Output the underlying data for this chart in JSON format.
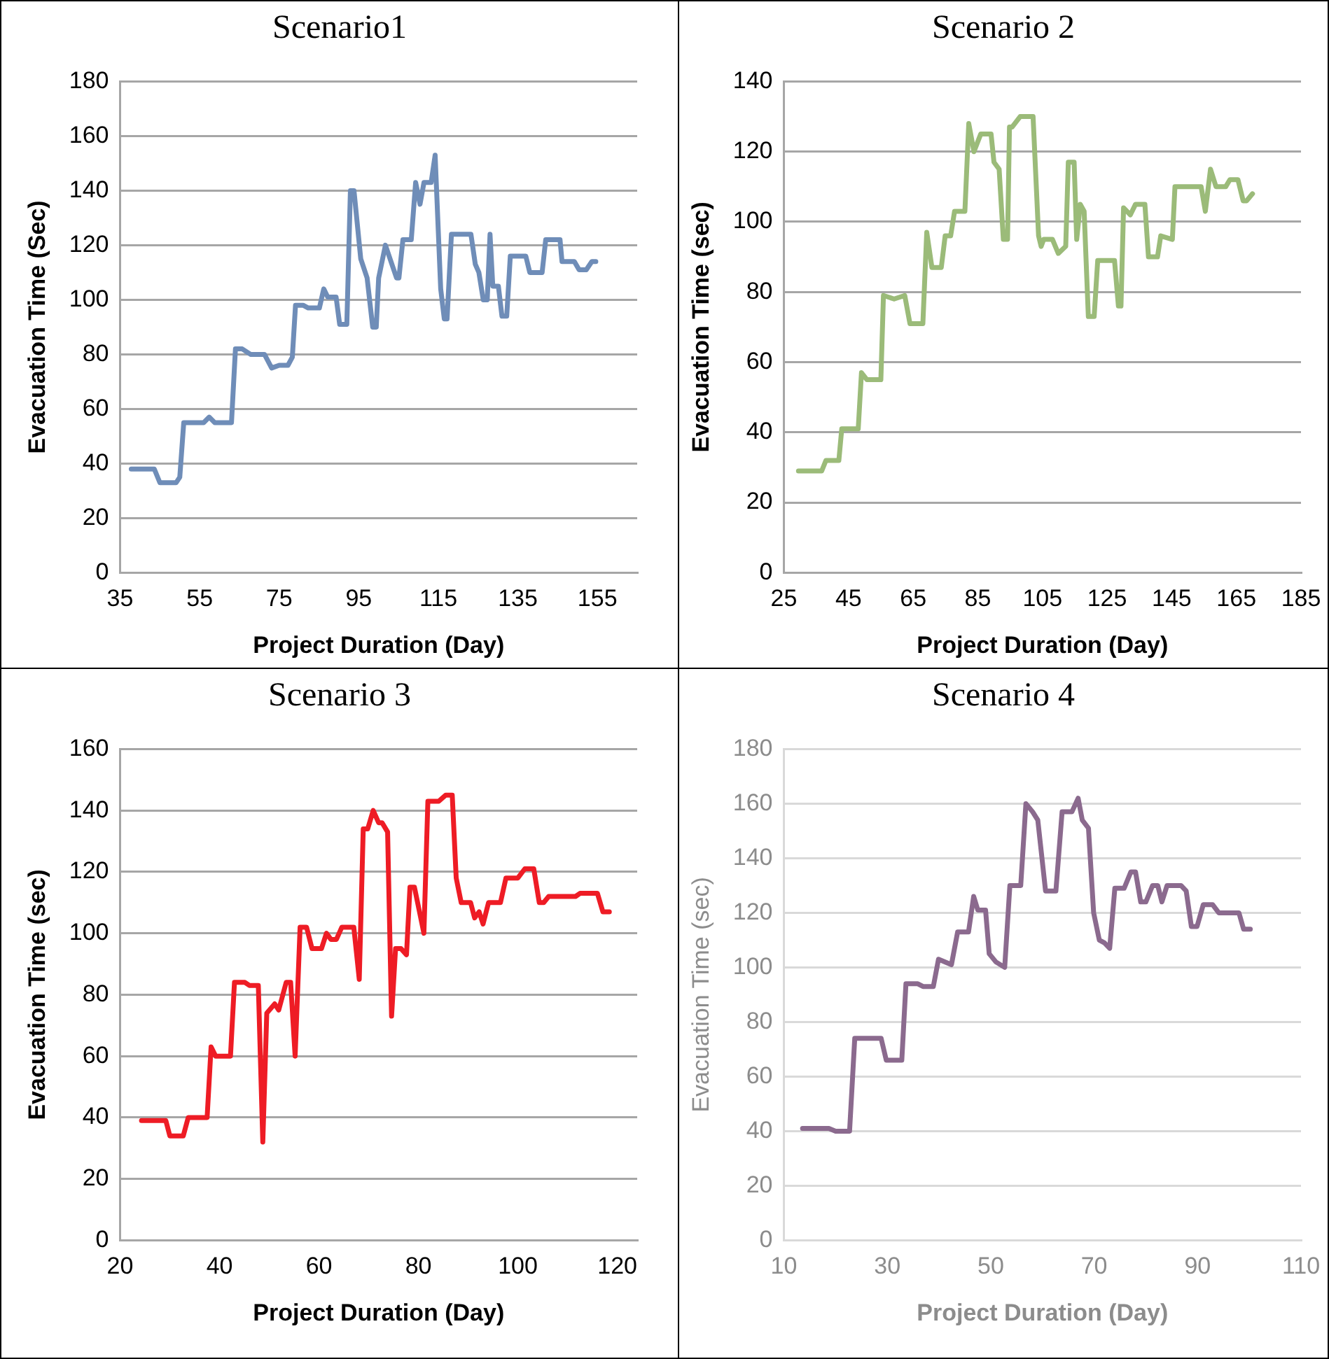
{
  "chart_data": [
    {
      "type": "line",
      "title": "Scenario1",
      "xlabel": "Project Duration (Day)",
      "ylabel": "Evacuation Time (Sec)",
      "xlim": [
        35,
        165
      ],
      "xticks": [
        35,
        55,
        75,
        95,
        115,
        135,
        155
      ],
      "ylim": [
        0,
        180
      ],
      "yticks": [
        0,
        20,
        40,
        60,
        80,
        100,
        120,
        140,
        160,
        180
      ],
      "grid": "y",
      "series": [
        {
          "color": "#6f8db8",
          "x": [
            37.8,
            43.6,
            45,
            49.1,
            50,
            51,
            56,
            57.4,
            58.8,
            63,
            64,
            65.7,
            67.8,
            71.3,
            73.1,
            75,
            77.2,
            78.3,
            79.1,
            81,
            82.3,
            85.1,
            86.2,
            87.2,
            89.3,
            90.2,
            92,
            92.9,
            93.8,
            95.5,
            97.1,
            98.5,
            99.4,
            100,
            101.7,
            104.5,
            105.1,
            106.1,
            108.2,
            109.3,
            110.4,
            111.4,
            113.2,
            114.2,
            115.6,
            116.5,
            117.2,
            118.3,
            123.2,
            124.3,
            125.2,
            126.3,
            127.3,
            128,
            128.7,
            130.1,
            131,
            132.2,
            133.1,
            137,
            138,
            141.1,
            142,
            145.6,
            146.1,
            149.2,
            150.4,
            152.2,
            153.6,
            154.6
          ],
          "values": [
            38,
            38,
            33,
            33,
            35,
            55,
            55,
            57,
            55,
            55,
            82,
            82,
            80,
            80,
            75,
            76,
            76,
            79,
            98,
            98,
            97,
            97,
            104,
            101,
            101,
            91,
            91,
            140,
            140,
            115,
            108,
            90,
            90,
            108,
            120,
            108,
            108,
            122,
            122,
            143,
            135,
            143,
            143,
            153,
            104,
            93,
            93,
            124,
            124,
            113,
            110,
            100,
            100,
            124,
            105,
            105,
            94,
            94,
            116,
            116,
            110,
            110,
            122,
            122,
            114,
            114,
            111,
            111,
            114,
            114
          ]
        }
      ]
    },
    {
      "type": "line",
      "title": "Scenario 2",
      "xlabel": "Project Duration (Day)",
      "ylabel": "Evacuation Time (sec)",
      "xlim": [
        25,
        185
      ],
      "xticks": [
        25,
        45,
        65,
        85,
        105,
        125,
        145,
        165,
        185
      ],
      "ylim": [
        0,
        140
      ],
      "yticks": [
        0,
        20,
        40,
        60,
        80,
        100,
        120,
        140
      ],
      "grid": "y",
      "series": [
        {
          "color": "#9bbb79",
          "x": [
            29.5,
            36.7,
            38,
            42,
            42.9,
            48,
            49,
            50.7,
            55,
            55.8,
            59.1,
            62.4,
            64,
            68,
            69.2,
            70.8,
            73.7,
            74.9,
            76.6,
            77.8,
            81,
            82.2,
            83.8,
            85.9,
            89.1,
            90,
            91.6,
            92.9,
            94.2,
            94.8,
            95.6,
            98.1,
            102.1,
            103.8,
            104.6,
            105.4,
            108.1,
            109.9,
            112.2,
            113,
            114.8,
            115.6,
            116.7,
            117.9,
            119.2,
            121,
            122.1,
            127.3,
            128.5,
            129.3,
            130.1,
            132.2,
            133.8,
            136.7,
            137.8,
            140.6,
            141.6,
            145.2,
            146,
            154.1,
            155.4,
            157,
            158.7,
            161.7,
            163,
            165.5,
            167.1,
            168.2,
            170
          ],
          "values": [
            29,
            29,
            32,
            32,
            41,
            41,
            57,
            55,
            55,
            79,
            78,
            79,
            71,
            71,
            97,
            87,
            87,
            96,
            96,
            103,
            103,
            128,
            120,
            125,
            125,
            117,
            115,
            95,
            95,
            127,
            127,
            130,
            130,
            96,
            93,
            95,
            95,
            91,
            93,
            117,
            117,
            95,
            105,
            103,
            73,
            73,
            89,
            89,
            76,
            76,
            104,
            102,
            105,
            105,
            90,
            90,
            96,
            95,
            110,
            110,
            103,
            115,
            110,
            110,
            112,
            112,
            106,
            106,
            108
          ]
        }
      ]
    },
    {
      "type": "line",
      "title": "Scenario 3",
      "xlabel": "Project Duration (Day)",
      "ylabel": "Evacuation Time (sec)",
      "xlim": [
        20,
        124
      ],
      "xticks": [
        20,
        40,
        60,
        80,
        100,
        120
      ],
      "ylim": [
        0,
        160
      ],
      "yticks": [
        0,
        20,
        40,
        60,
        80,
        100,
        120,
        140,
        160
      ],
      "grid": "y",
      "series": [
        {
          "color": "#ee1c25",
          "x": [
            24.3,
            29.2,
            30,
            32.7,
            33.7,
            37.5,
            38.3,
            39.2,
            42.2,
            43,
            45.1,
            46,
            47.8,
            48.7,
            49.5,
            51.1,
            51.9,
            53.4,
            54.3,
            55.2,
            56.2,
            57.5,
            58.6,
            60.5,
            61.5,
            62.4,
            63.5,
            64.6,
            67,
            68.1,
            68.9,
            69.8,
            70.9,
            72,
            72.7,
            73.8,
            74.6,
            75.4,
            76.5,
            77.6,
            78.3,
            79.2,
            81.1,
            81.9,
            84.1,
            85.5,
            86.8,
            87.6,
            88.6,
            90.5,
            91.3,
            92.2,
            93,
            94.1,
            96.5,
            97.6,
            100,
            101.4,
            103.2,
            104.3,
            105.2,
            106.2,
            111.6,
            112.5,
            116,
            117.1,
            118.4
          ],
          "values": [
            39,
            39,
            34,
            34,
            40,
            40,
            63,
            60,
            60,
            84,
            84,
            83,
            83,
            32,
            74,
            77,
            75,
            84,
            84,
            60,
            102,
            102,
            95,
            95,
            100,
            98,
            98,
            102,
            102,
            85,
            134,
            134,
            140,
            136,
            136,
            133,
            73,
            95,
            95,
            93,
            115,
            115,
            100,
            143,
            143,
            145,
            145,
            118,
            110,
            110,
            105,
            107,
            103,
            110,
            110,
            118,
            118,
            121,
            121,
            110,
            110,
            112,
            112,
            113,
            113,
            107,
            107
          ]
        }
      ]
    },
    {
      "type": "line",
      "title": "Scenario 4",
      "xlabel": "Project Duration (Day)",
      "ylabel": "Evacuation Time (sec)",
      "xlim": [
        10,
        110
      ],
      "xticks": [
        10,
        30,
        50,
        70,
        90,
        110
      ],
      "ylim": [
        0,
        180
      ],
      "yticks": [
        0,
        20,
        40,
        60,
        80,
        100,
        120,
        140,
        160,
        180
      ],
      "grid": "y",
      "series": [
        {
          "color": "#8b6a8e",
          "x": [
            13.6,
            18.7,
            20,
            22.7,
            23.7,
            28.8,
            29.8,
            32.8,
            33.6,
            35.9,
            36.9,
            38.9,
            39.9,
            42.4,
            43.6,
            45.7,
            46.7,
            47.5,
            49,
            49.7,
            51,
            52.7,
            53.7,
            55.8,
            56.8,
            58.1,
            59.1,
            60.6,
            62.6,
            63.8,
            65.7,
            66.9,
            67.7,
            68.9,
            69.9,
            71,
            72,
            73,
            74,
            75.8,
            77.1,
            78,
            79,
            80,
            81.3,
            82.3,
            83.1,
            84.1,
            86.8,
            87.8,
            88.8,
            89.9,
            91.1,
            92.9,
            94.1,
            98,
            98.9,
            100.2
          ],
          "values": [
            41,
            41,
            40,
            40,
            74,
            74,
            66,
            66,
            94,
            94,
            93,
            93,
            103,
            101,
            113,
            113,
            126,
            121,
            121,
            105,
            102,
            100,
            130,
            130,
            160,
            157,
            154,
            128,
            128,
            157,
            157,
            162,
            154,
            151,
            120,
            110,
            109,
            107,
            129,
            129,
            135,
            135,
            124,
            124,
            130,
            130,
            124,
            130,
            130,
            128,
            115,
            115,
            123,
            123,
            120,
            120,
            114,
            114
          ]
        }
      ]
    }
  ]
}
